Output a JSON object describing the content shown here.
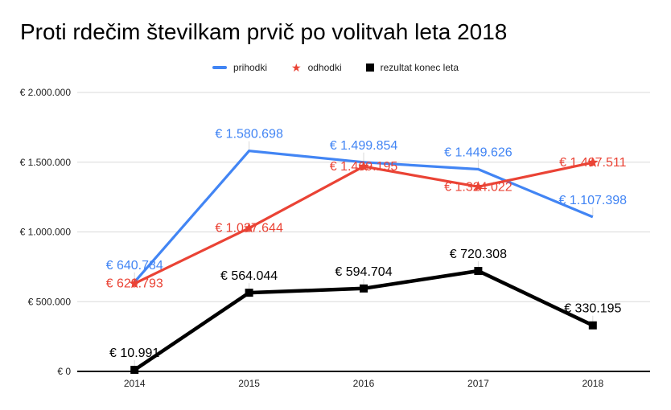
{
  "page": {
    "title": "Proti rdečim številkam prvič po volitvah leta 2018"
  },
  "legend": {
    "items": [
      "prihodki",
      "odhodki",
      "rezultat konec leta"
    ]
  },
  "colors": {
    "prihodki": "#4285f4",
    "odhodki": "#ea4335",
    "rezultat": "#000000",
    "gridline": "#d9d9d9",
    "axis_line": "#000000",
    "axis_label": "#222222"
  },
  "chart_data": {
    "type": "line",
    "title": "Proti rdečim številkam prvič po volitvah leta 2018",
    "categories": [
      "2014",
      "2015",
      "2016",
      "2017",
      "2018"
    ],
    "series": [
      {
        "name": "prihodki",
        "color": "#4285f4",
        "marker": "dash",
        "label_position": "above",
        "values": [
          640784,
          1580698,
          1499854,
          1449626,
          1107398
        ],
        "labels": [
          "€ 640.784",
          "€ 1.580.698",
          "€ 1.499.854",
          "€ 1.449.626",
          "€ 1.107.398"
        ]
      },
      {
        "name": "odhodki",
        "color": "#ea4335",
        "marker": "star",
        "label_position": "center",
        "values": [
          629793,
          1027644,
          1469195,
          1324022,
          1497511
        ],
        "labels": [
          "€ 629.793",
          "€ 1.027.644",
          "€ 1.469.195",
          "€ 1.324.022",
          "€ 1.497.511"
        ]
      },
      {
        "name": "rezultat konec leta",
        "color": "#000000",
        "marker": "square",
        "label_position": "above",
        "values": [
          10991,
          564044,
          594704,
          720308,
          330195
        ],
        "labels": [
          "€ 10.991",
          "€ 564.044",
          "€ 594.704",
          "€ 720.308",
          "€ 330.195"
        ]
      }
    ],
    "xlabel": "",
    "ylabel": "",
    "ylim": [
      0,
      2000000
    ],
    "y_ticks": [
      {
        "value": 0,
        "label": "€ 0"
      },
      {
        "value": 500000,
        "label": "€ 500.000"
      },
      {
        "value": 1000000,
        "label": "€ 1.000.000"
      },
      {
        "value": 1500000,
        "label": "€ 1.500.000"
      },
      {
        "value": 2000000,
        "label": "€ 2.000.000"
      }
    ],
    "grid": true,
    "legend_position": "top"
  }
}
